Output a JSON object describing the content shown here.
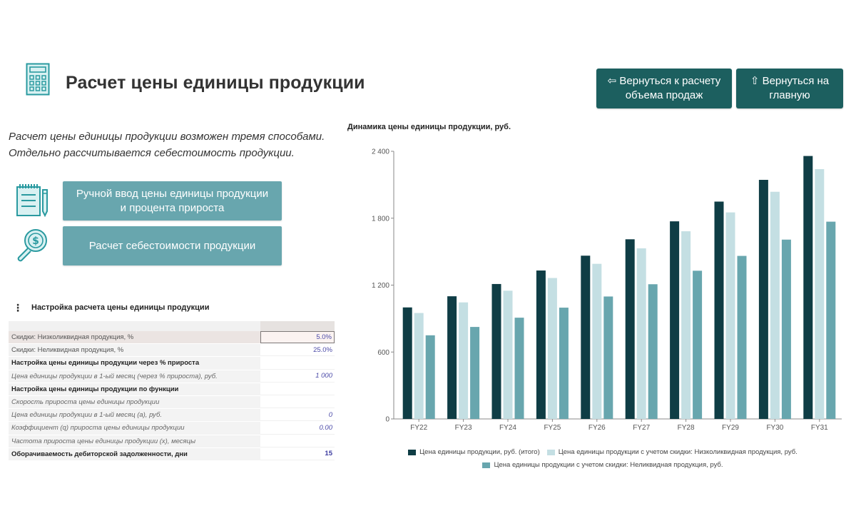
{
  "header": {
    "title": "Расчет цены единицы продукции",
    "icon": "calculator-icon"
  },
  "nav": {
    "back_label": "⇦ Вернуться к расчету объема продаж",
    "home_label": "⇧ Вернуться на главную"
  },
  "intro": {
    "line1": "Расчет цены единицы продукции возможен тремя способами.",
    "line2": "Отдельно рассчитывается себестоимость продукции."
  },
  "methods": [
    {
      "label": "Ручной ввод цены единицы продукции и процента прироста",
      "icon": "notepad-pencil-icon"
    },
    {
      "label": "Расчет себестоимости продукции",
      "icon": "magnifier-dollar-icon"
    }
  ],
  "settings": {
    "title": "Настройка расчета цены единицы продукции",
    "rows": [
      {
        "label": "Скидки: Низколиквидная продукция, %",
        "value": "5.0%",
        "style": "normal selected"
      },
      {
        "label": "Скидки: Неликвидная продукция, %",
        "value": "25.0%",
        "style": "normal"
      },
      {
        "label": "Настройка цены единицы продукции через % прироста",
        "value": "",
        "style": "bold"
      },
      {
        "label": "Цена единицы продукции в 1-ый месяц (через % прироста), руб.",
        "value": "1 000",
        "style": "italic"
      },
      {
        "label": "Настройка цены единицы продукции по функции",
        "value": "",
        "style": "bold"
      },
      {
        "label": "Скорость прироста цены единицы продукции",
        "value": "",
        "style": "italic"
      },
      {
        "label": "Цена единицы продукции в 1-ый месяц (a), руб.",
        "value": "0",
        "style": "italic"
      },
      {
        "label": "Коэффициент (q) прироста цены единицы продукции",
        "value": "0.00",
        "style": "italic"
      },
      {
        "label": "Частота прироста цены единицы продукции (x), месяцы",
        "value": "",
        "style": "italic"
      },
      {
        "label": "Оборачиваемость дебиторской задолженности, дни",
        "value": "15",
        "style": "bold"
      }
    ]
  },
  "colors": {
    "nav_button": "#1c5f5f",
    "method_button": "#68a6ae",
    "icon_teal": "#2a9aa0",
    "series_dark": "#0f3d45",
    "series_light": "#c4dfe3",
    "series_mid": "#68a6ae"
  },
  "chart_data": {
    "type": "bar",
    "title": "Динамика цены единицы продукции, руб.",
    "xlabel": "",
    "ylabel": "",
    "categories": [
      "FY22",
      "FY23",
      "FY24",
      "FY25",
      "FY26",
      "FY27",
      "FY28",
      "FY29",
      "FY30",
      "FY31"
    ],
    "series": [
      {
        "name": "Цена единицы продукции, руб. (итого)",
        "color": "#0f3d45",
        "values": [
          1000,
          1100,
          1210,
          1331,
          1464,
          1611,
          1772,
          1949,
          2144,
          2358
        ]
      },
      {
        "name": "Цена единицы продукции с учетом скидки: Низколиквидная продукция, руб.",
        "color": "#c4dfe3",
        "values": [
          950,
          1045,
          1150,
          1264,
          1391,
          1530,
          1683,
          1852,
          2037,
          2240
        ]
      },
      {
        "name": "Цена единицы продукции с учетом скидки: Неликвидная продукция, руб.",
        "color": "#68a6ae",
        "values": [
          750,
          825,
          908,
          998,
          1098,
          1208,
          1329,
          1462,
          1608,
          1769
        ]
      }
    ],
    "yticks": [
      0,
      600,
      1200,
      1800,
      2400
    ],
    "ytick_labels": [
      "0",
      "600",
      "1 200",
      "1 800",
      "2 400"
    ],
    "ylim": [
      0,
      2400
    ],
    "grid": false,
    "legend_position": "bottom"
  }
}
